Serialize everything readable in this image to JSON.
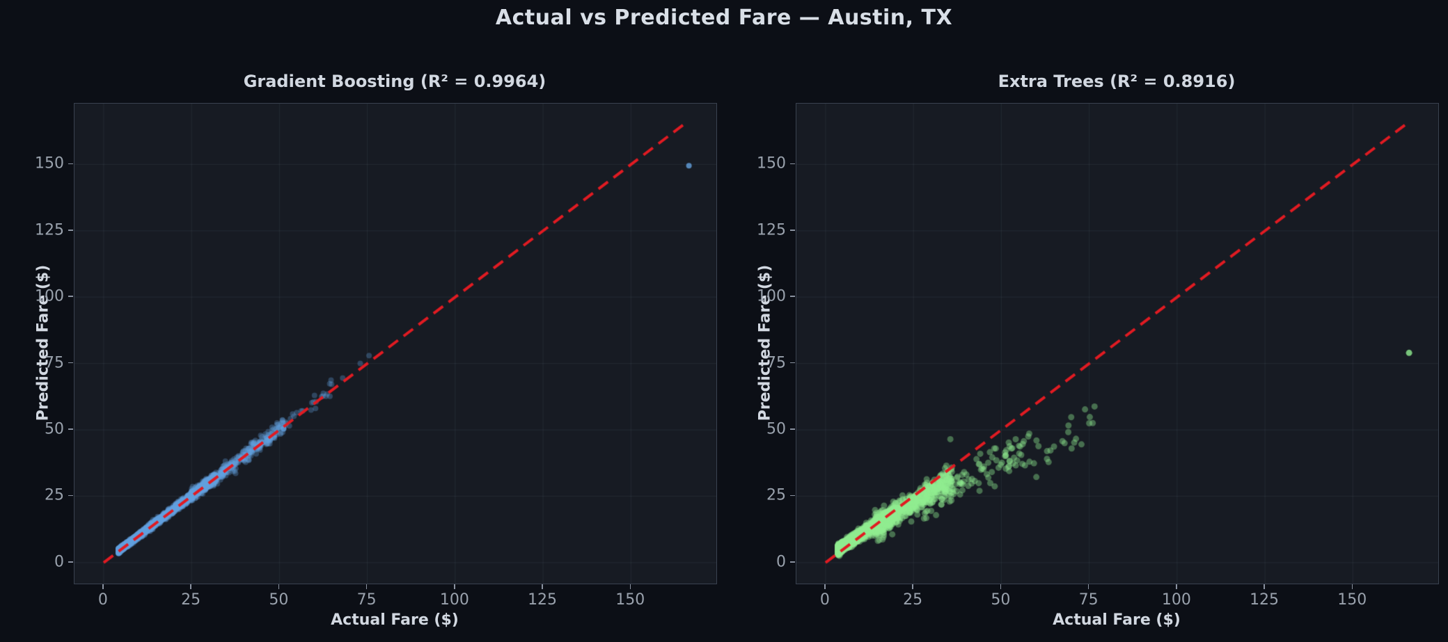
{
  "figure": {
    "title": "Actual vs Predicted Fare — Austin, TX",
    "background": "#0c0f16",
    "axes_background": "#171b23",
    "spine_color": "#3a4250",
    "grid_color": "rgba(170,185,210,0.08)",
    "tick_mark_color": "#8a92a0",
    "tick_label_color": "#9aa2ad",
    "text_color": "#d2d8e1",
    "title_color": "#d9dfe7"
  },
  "chart_data": [
    {
      "type": "scatter",
      "model": "Gradient Boosting",
      "r2": 0.9964,
      "title": "Gradient Boosting (R² = 0.9964)",
      "xlabel": "Actual Fare ($)",
      "ylabel": "Predicted Fare ($)",
      "xlim": [
        -8.3,
        174.3
      ],
      "ylim": [
        -7.9,
        172.9
      ],
      "xticks": [
        0,
        25,
        50,
        75,
        100,
        125,
        150
      ],
      "yticks": [
        0,
        25,
        50,
        75,
        100,
        125,
        150
      ],
      "grid": true,
      "legend": "none",
      "point_color": "#64a1df",
      "point_alpha": 0.32,
      "point_radius": 4,
      "seed": 12,
      "diagonal": {
        "x": [
          0,
          166
        ],
        "y": [
          0,
          166
        ],
        "color": "#e01b22",
        "dash": [
          17,
          10
        ],
        "width": 4
      },
      "clusters": [
        {
          "count": 2800,
          "x_min": 4.2,
          "x_max": 32,
          "x_pow": 2.2,
          "slope": 1.0,
          "intercept": 0.25,
          "sigma_base": 0.3,
          "sigma_per_x": 0.018
        },
        {
          "count": 420,
          "x_min": 25,
          "x_max": 52,
          "x_pow": 1.5,
          "slope": 1.0,
          "intercept": 0.2,
          "sigma_base": 0.9,
          "sigma_per_x": 0.01
        },
        {
          "count": 30,
          "x_min": 45,
          "x_max": 66,
          "x_pow": 1.2,
          "slope": 1.0,
          "intercept": 0.5,
          "sigma_base": 1.4,
          "sigma_per_x": 0
        }
      ],
      "points": [
        [
          68,
          69.5
        ],
        [
          73,
          75
        ],
        [
          75.5,
          78
        ],
        [
          62,
          62.5
        ],
        [
          59,
          57.5
        ]
      ],
      "outliers": [
        [
          166.5,
          149.5
        ]
      ]
    },
    {
      "type": "scatter",
      "model": "Extra Trees",
      "r2": 0.8916,
      "title": "Extra Trees (R² = 0.8916)",
      "xlabel": "Actual Fare ($)",
      "ylabel": "Predicted Fare ($)",
      "xlim": [
        -8.3,
        174.3
      ],
      "ylim": [
        -7.9,
        172.9
      ],
      "xticks": [
        0,
        25,
        50,
        75,
        100,
        125,
        150
      ],
      "yticks": [
        0,
        25,
        50,
        75,
        100,
        125,
        150
      ],
      "grid": true,
      "legend": "none",
      "point_color": "#90ee90",
      "point_alpha": 0.4,
      "point_radius": 4.5,
      "seed": 99,
      "diagonal": {
        "x": [
          0,
          166
        ],
        "y": [
          0,
          166
        ],
        "color": "#e01b22",
        "dash": [
          17,
          10
        ],
        "width": 4
      },
      "clusters": [
        {
          "count": 2600,
          "x_min": 3.5,
          "x_max": 20,
          "x_pow": 2.3,
          "slope": 0.88,
          "intercept": 1.8,
          "sigma_base": 0.7,
          "sigma_per_x": 0.02
        },
        {
          "count": 700,
          "x_min": 14,
          "x_max": 36,
          "x_pow": 1.6,
          "slope": 0.84,
          "intercept": 1.5,
          "sigma_base": 1.6,
          "sigma_per_x": 0.02
        },
        {
          "count": 110,
          "x_min": 28,
          "x_max": 58,
          "x_pow": 1.4,
          "slope": 0.72,
          "intercept": 2.0,
          "sigma_base": 2.8,
          "sigma_per_x": 0.01
        },
        {
          "count": 22,
          "x_min": 50,
          "x_max": 78,
          "x_pow": 1.0,
          "slope": 0.64,
          "intercept": 2.5,
          "sigma_base": 3.5,
          "sigma_per_x": 0
        }
      ],
      "points": [
        [
          35.5,
          46.5
        ],
        [
          44,
          41
        ],
        [
          48,
          43
        ],
        [
          55,
          44
        ],
        [
          60,
          46
        ],
        [
          63,
          42
        ],
        [
          68,
          45
        ],
        [
          75,
          52.5
        ],
        [
          58,
          38
        ],
        [
          52,
          36
        ],
        [
          70,
          43
        ]
      ],
      "outliers": [
        [
          166,
          79
        ]
      ]
    }
  ]
}
